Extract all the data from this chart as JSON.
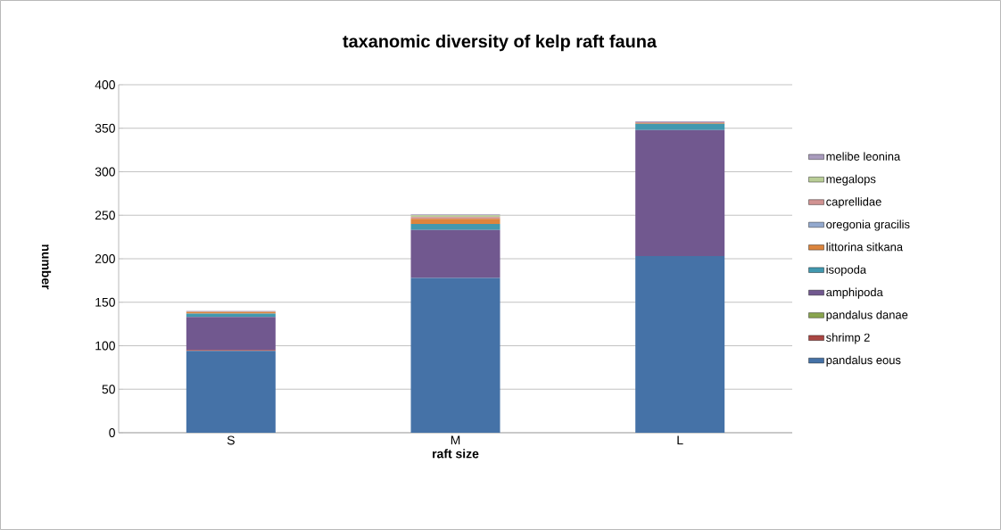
{
  "chart_data": {
    "type": "bar",
    "stacked": true,
    "title": "taxanomic diversity of kelp raft fauna",
    "xlabel": "raft size",
    "ylabel": "number",
    "categories": [
      "S",
      "M",
      "L"
    ],
    "series": [
      {
        "name": "pandalus eous",
        "color": "#4572a7",
        "values": [
          94,
          178,
          203
        ]
      },
      {
        "name": "shrimp 2",
        "color": "#aa4643",
        "values": [
          1,
          0,
          0
        ]
      },
      {
        "name": "pandalus danae",
        "color": "#89a54e",
        "values": [
          0,
          0,
          0
        ]
      },
      {
        "name": "amphipoda",
        "color": "#71588f",
        "values": [
          38,
          55,
          145
        ]
      },
      {
        "name": "isopoda",
        "color": "#4198af",
        "values": [
          4,
          7,
          7
        ]
      },
      {
        "name": "littorina sitkana",
        "color": "#db843d",
        "values": [
          2,
          6,
          1
        ]
      },
      {
        "name": "oregonia gracilis",
        "color": "#93a9cf",
        "values": [
          0,
          0,
          0
        ]
      },
      {
        "name": "caprellidae",
        "color": "#d19392",
        "values": [
          0,
          2,
          1
        ]
      },
      {
        "name": "megalops",
        "color": "#b9cd96",
        "values": [
          0,
          2,
          0
        ]
      },
      {
        "name": "melibe leonina",
        "color": "#a99bbd",
        "values": [
          1,
          1,
          1
        ]
      }
    ],
    "ylim": [
      0,
      400
    ],
    "yticks": [
      0,
      50,
      100,
      150,
      200,
      250,
      300,
      350,
      400
    ],
    "grid": "y",
    "legend": "right"
  }
}
